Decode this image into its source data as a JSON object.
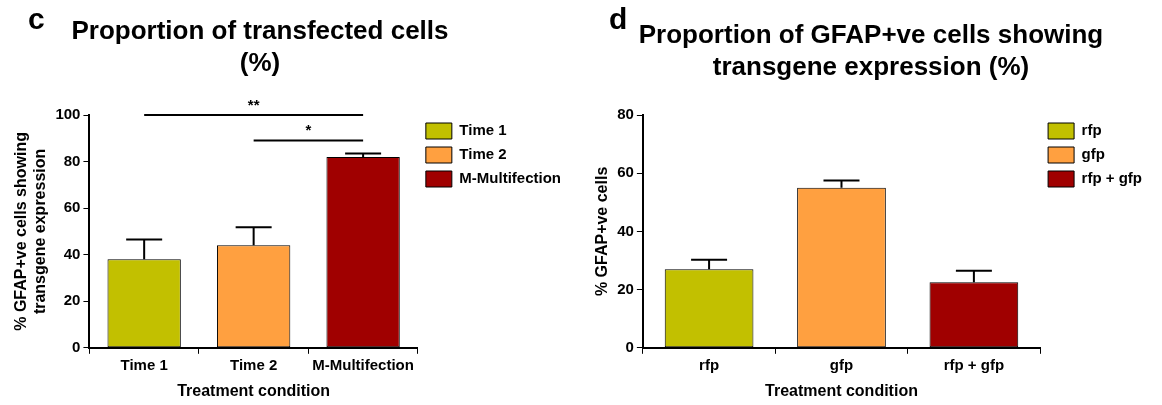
{
  "chart_data": [
    {
      "type": "bar",
      "title": "Proportion of transfected cells (%)",
      "xlabel": "Treatment condition",
      "ylabel": "% GFAP+ve cells showing transgene expression",
      "categories": [
        "Time 1",
        "Time 2",
        "M-Multifection"
      ],
      "series": [
        {
          "name": "Time 1",
          "color": "#c2c000",
          "values": [
            38,
            null,
            null
          ],
          "errors": [
            [
              38,
              46.5
            ],
            null,
            null
          ]
        },
        {
          "name": "Time 2",
          "color": "#ffa040",
          "values": [
            null,
            44,
            null
          ],
          "errors": [
            null,
            [
              44,
              51.8
            ],
            null
          ]
        },
        {
          "name": "M-Multifection",
          "color": "#a00000",
          "values": [
            null,
            null,
            82
          ],
          "errors": [
            null,
            null,
            [
              82,
              83.5
            ]
          ]
        }
      ],
      "ylim": [
        0,
        100
      ],
      "yticks": [
        0,
        20,
        40,
        60,
        80,
        100
      ],
      "grid": false,
      "legend": "right",
      "annotations": [
        "c",
        "**",
        "*"
      ]
    },
    {
      "type": "bar",
      "title": "Proportion of GFAP+ve cells showing transgene expression (%)",
      "xlabel": "Treatment condition",
      "ylabel": "% GFAP+ve cells",
      "categories": [
        "rfp",
        "gfp",
        "rfp + gfp"
      ],
      "series": [
        {
          "name": "rfp",
          "color": "#c2c000",
          "values": [
            27,
            null,
            null
          ],
          "errors": [
            [
              27,
              30.3
            ],
            null,
            null
          ]
        },
        {
          "name": "gfp",
          "color": "#ffa040",
          "values": [
            null,
            55,
            null
          ],
          "errors": [
            null,
            [
              55,
              57.5
            ],
            null
          ]
        },
        {
          "name": "rfp + gfp",
          "color": "#a00000",
          "values": [
            null,
            null,
            22.5
          ],
          "errors": [
            null,
            null,
            [
              22.5,
              26.5
            ]
          ]
        }
      ],
      "ylim": [
        0,
        80
      ],
      "yticks": [
        0,
        20,
        40,
        60,
        80
      ],
      "grid": false,
      "legend": "right",
      "annotations": [
        "d"
      ]
    }
  ]
}
